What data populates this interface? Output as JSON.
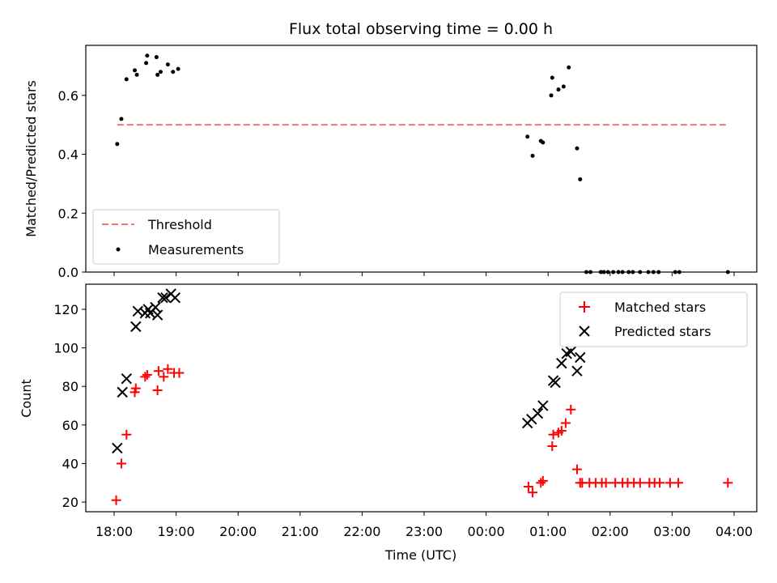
{
  "chart_data": {
    "title": "Flux total observing time = 0.00 h",
    "xlabel": "Time (UTC)",
    "x_tick_labels": [
      "18:00",
      "19:00",
      "20:00",
      "21:00",
      "22:00",
      "23:00",
      "00:00",
      "01:00",
      "02:00",
      "03:00",
      "04:00"
    ],
    "x_range": [
      "18:00",
      "04:10"
    ],
    "panels": [
      {
        "type": "scatter",
        "ylabel": "Matched/Predicted stars",
        "ylim": [
          0,
          0.77
        ],
        "y_ticks": [
          "0.0",
          "0.2",
          "0.4",
          "0.6"
        ],
        "legend_position": "lower-left",
        "legend": [
          "Threshold",
          "Measurements"
        ],
        "threshold": {
          "name": "Threshold",
          "value": 0.5,
          "x_start": "18:03",
          "x_end": "03:53",
          "color": "#f07878"
        },
        "series": [
          {
            "name": "Measurements",
            "color": "#000000",
            "x": [
              "18:03",
              "18:07",
              "18:12",
              "18:20",
              "18:22",
              "18:31",
              "18:32",
              "18:41",
              "18:42",
              "18:45",
              "18:52",
              "18:57",
              "19:02",
              "00:40",
              "00:45",
              "00:53",
              "00:55",
              "01:03",
              "01:04",
              "01:10",
              "01:15",
              "01:20",
              "01:28",
              "01:31",
              "01:37",
              "01:41",
              "01:51",
              "01:54",
              "01:58",
              "02:03",
              "02:08",
              "02:12",
              "02:18",
              "02:22",
              "02:29",
              "02:37",
              "02:42",
              "02:47",
              "03:03",
              "03:07",
              "03:54"
            ],
            "y": [
              0.435,
              0.52,
              0.655,
              0.685,
              0.67,
              0.71,
              0.735,
              0.73,
              0.67,
              0.68,
              0.705,
              0.68,
              0.69,
              0.46,
              0.395,
              0.445,
              0.44,
              0.6,
              0.66,
              0.62,
              0.63,
              0.695,
              0.42,
              0.315,
              0,
              0,
              0,
              0,
              0,
              0,
              0,
              0,
              0,
              0,
              0,
              0,
              0,
              0,
              0,
              0,
              0
            ]
          }
        ]
      },
      {
        "type": "scatter",
        "ylabel": "Count",
        "ylim": [
          15,
          133
        ],
        "y_ticks": [
          "20",
          "40",
          "60",
          "80",
          "100",
          "120"
        ],
        "legend_position": "upper-right",
        "legend": [
          "Matched stars",
          "Predicted stars"
        ],
        "series": [
          {
            "name": "Matched stars",
            "marker": "+",
            "color": "#ff0000",
            "x": [
              "18:02",
              "18:07",
              "18:12",
              "18:20",
              "18:21",
              "18:30",
              "18:32",
              "18:42",
              "18:43",
              "18:48",
              "18:52",
              "18:58",
              "19:03",
              "00:41",
              "00:45",
              "00:53",
              "00:55",
              "01:04",
              "01:05",
              "01:10",
              "01:13",
              "01:17",
              "01:22",
              "01:28",
              "01:31",
              "01:33",
              "01:40",
              "01:46",
              "01:52",
              "01:56",
              "02:05",
              "02:12",
              "02:17",
              "02:23",
              "02:29",
              "02:38",
              "02:43",
              "02:48",
              "02:58",
              "03:06",
              "03:54"
            ],
            "y": [
              21,
              40,
              55,
              77,
              79,
              85,
              86,
              78,
              88,
              85,
              89,
              87,
              87,
              28,
              25,
              30,
              31,
              49,
              55,
              56,
              57,
              61,
              68,
              37,
              30,
              30,
              30,
              30,
              30,
              30,
              30,
              30,
              30,
              30,
              30,
              30,
              30,
              30,
              30,
              30,
              30
            ]
          },
          {
            "name": "Predicted stars",
            "marker": "x",
            "color": "#000000",
            "x": [
              "18:03",
              "18:08",
              "18:12",
              "18:21",
              "18:23",
              "18:30",
              "18:33",
              "18:35",
              "18:40",
              "18:42",
              "18:47",
              "18:50",
              "18:55",
              "18:59",
              "00:40",
              "00:44",
              "00:50",
              "00:55",
              "01:05",
              "01:07",
              "01:13",
              "01:18",
              "01:22",
              "01:28",
              "01:31"
            ],
            "y": [
              48,
              77,
              84,
              111,
              119,
              118,
              120,
              118,
              121,
              117,
              126,
              126,
              128,
              126,
              61,
              63,
              66,
              70,
              83,
              82,
              92,
              97,
              98,
              88,
              95
            ]
          }
        ]
      }
    ]
  }
}
